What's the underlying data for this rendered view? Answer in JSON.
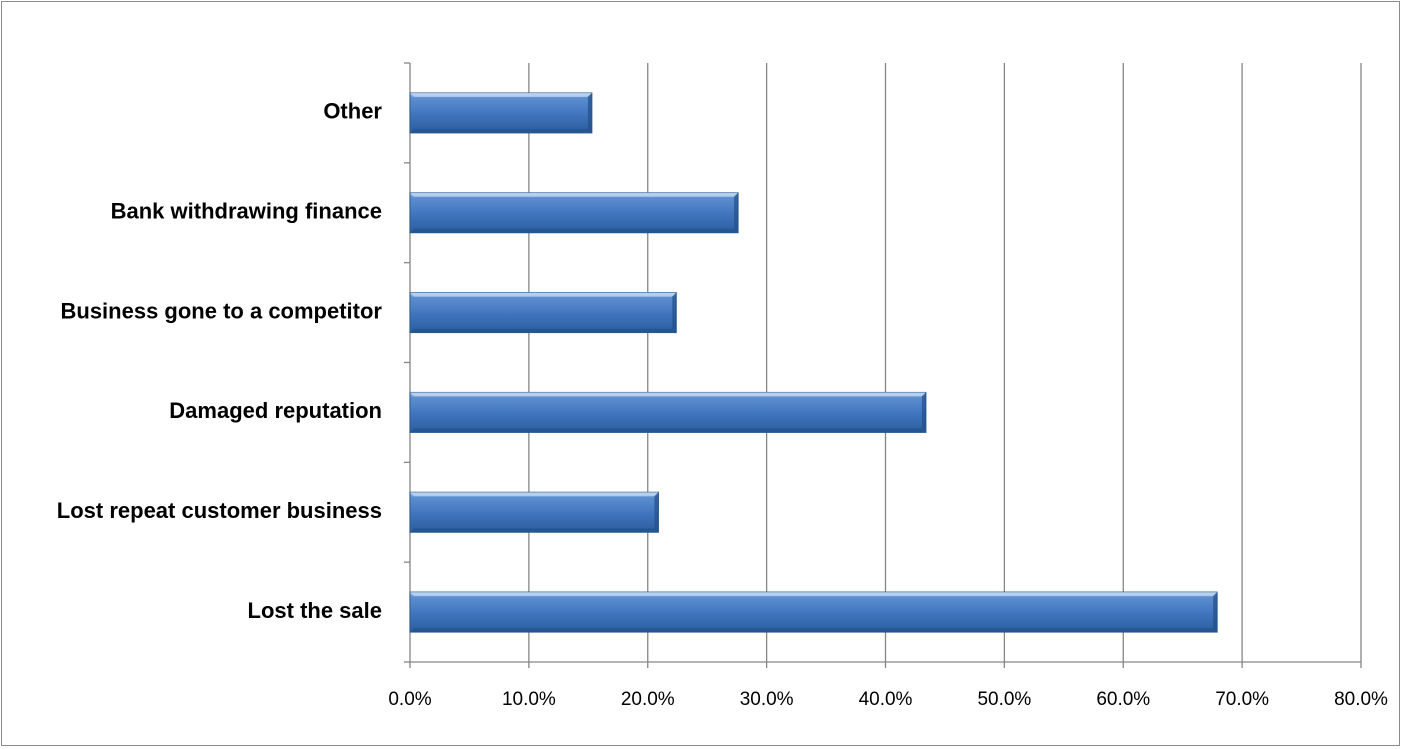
{
  "chart_data": {
    "type": "bar",
    "orientation": "horizontal",
    "categories": [
      "Lost the sale",
      "Lost repeat customer business",
      "Damaged reputation",
      "Business gone to a competitor",
      "Bank withdrawing finance",
      "Other"
    ],
    "values": [
      67.9,
      20.9,
      43.4,
      22.4,
      27.6,
      15.3
    ],
    "xlim": [
      0,
      80
    ],
    "xticks": [
      0,
      10,
      20,
      30,
      40,
      50,
      60,
      70,
      80
    ],
    "xtick_labels": [
      "0.0%",
      "10.0%",
      "20.0%",
      "30.0%",
      "40.0%",
      "50.0%",
      "60.0%",
      "70.0%",
      "80.0%"
    ],
    "value_format": "percent",
    "grid": "vertical",
    "legend": "none",
    "bar_color": "#4f81bd",
    "bar_edge_color": "#2c5d94",
    "gridline_color": "#868686"
  }
}
